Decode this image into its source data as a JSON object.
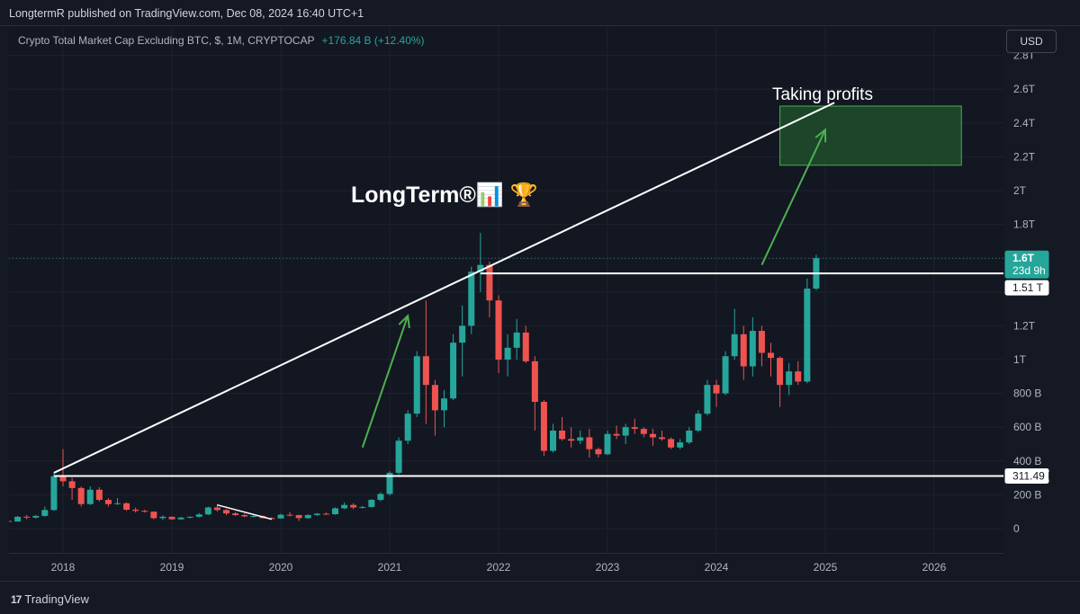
{
  "header": {
    "publisher": "LongtermR published on TradingView.com, Dec 08, 2024 16:40 UTC+1",
    "symbol": "Crypto Total Market Cap Excluding BTC, $, 1M, CRYPTOCAP",
    "change": "+176.84 B (+12.40%)",
    "currency_button": "USD"
  },
  "footer": {
    "brand": "TradingView",
    "logo_text": "17"
  },
  "annotations": {
    "watermark": "LongTerm®📊 🏆",
    "taking_profits": "Taking profits"
  },
  "price_labels": {
    "last_price": "1.6T",
    "countdown": "23d 9h",
    "level_upper": "1.51 T",
    "level_lower": "311.49 B"
  },
  "colors": {
    "background": "#131722",
    "bull": "#26a69a",
    "bear": "#ef5350",
    "arrow": "#4caf50",
    "zone": "#1f4d2c",
    "lines": "#ffffff"
  },
  "chart_data": {
    "type": "candlestick",
    "interval": "1M",
    "y_unit": "billion USD",
    "y_ticks": [
      {
        "value": 0,
        "label": "0"
      },
      {
        "value": 200,
        "label": "200 B"
      },
      {
        "value": 400,
        "label": "400 B"
      },
      {
        "value": 600,
        "label": "600 B"
      },
      {
        "value": 800,
        "label": "800 B"
      },
      {
        "value": 1000,
        "label": "1T"
      },
      {
        "value": 1200,
        "label": "1.2T"
      },
      {
        "value": 1400,
        "label": ""
      },
      {
        "value": 1600,
        "label": ""
      },
      {
        "value": 1800,
        "label": "1.8T"
      },
      {
        "value": 2000,
        "label": "2T"
      },
      {
        "value": 2200,
        "label": "2.2T"
      },
      {
        "value": 2400,
        "label": "2.4T"
      },
      {
        "value": 2600,
        "label": "2.6T"
      },
      {
        "value": 2800,
        "label": "2.8T"
      }
    ],
    "x_ticks": [
      {
        "date": "2018-01",
        "label": "2018"
      },
      {
        "date": "2019-01",
        "label": "2019"
      },
      {
        "date": "2020-01",
        "label": "2020"
      },
      {
        "date": "2021-01",
        "label": "2021"
      },
      {
        "date": "2022-01",
        "label": "2022"
      },
      {
        "date": "2023-01",
        "label": "2023"
      },
      {
        "date": "2024-01",
        "label": "2024"
      },
      {
        "date": "2025-01",
        "label": "2025"
      },
      {
        "date": "2026-01",
        "label": "2026"
      }
    ],
    "ohlc": [
      [
        "2017-06",
        40,
        55,
        30,
        45
      ],
      [
        "2017-07",
        45,
        52,
        35,
        42
      ],
      [
        "2017-08",
        42,
        75,
        40,
        70
      ],
      [
        "2017-09",
        70,
        80,
        55,
        65
      ],
      [
        "2017-10",
        65,
        80,
        60,
        75
      ],
      [
        "2017-11",
        75,
        130,
        70,
        110
      ],
      [
        "2017-12",
        110,
        330,
        105,
        310
      ],
      [
        "2018-01",
        310,
        470,
        250,
        280
      ],
      [
        "2018-02",
        280,
        300,
        170,
        240
      ],
      [
        "2018-03",
        240,
        250,
        130,
        145
      ],
      [
        "2018-04",
        145,
        250,
        140,
        230
      ],
      [
        "2018-05",
        230,
        245,
        160,
        170
      ],
      [
        "2018-06",
        170,
        180,
        130,
        145
      ],
      [
        "2018-07",
        145,
        180,
        140,
        150
      ],
      [
        "2018-08",
        150,
        155,
        105,
        112
      ],
      [
        "2018-09",
        112,
        125,
        95,
        105
      ],
      [
        "2018-10",
        105,
        112,
        95,
        100
      ],
      [
        "2018-11",
        100,
        102,
        55,
        62
      ],
      [
        "2018-12",
        62,
        78,
        50,
        70
      ],
      [
        "2019-01",
        70,
        72,
        52,
        55
      ],
      [
        "2019-02",
        55,
        70,
        52,
        65
      ],
      [
        "2019-03",
        65,
        72,
        60,
        70
      ],
      [
        "2019-04",
        70,
        92,
        66,
        84
      ],
      [
        "2019-05",
        84,
        130,
        80,
        125
      ],
      [
        "2019-06",
        125,
        145,
        100,
        110
      ],
      [
        "2019-07",
        110,
        115,
        80,
        90
      ],
      [
        "2019-08",
        90,
        98,
        75,
        80
      ],
      [
        "2019-09",
        80,
        88,
        68,
        72
      ],
      [
        "2019-10",
        72,
        80,
        66,
        74
      ],
      [
        "2019-11",
        74,
        78,
        60,
        62
      ],
      [
        "2019-12",
        62,
        68,
        55,
        60
      ],
      [
        "2020-01",
        60,
        88,
        58,
        82
      ],
      [
        "2020-02",
        82,
        98,
        72,
        80
      ],
      [
        "2020-03",
        80,
        82,
        45,
        62
      ],
      [
        "2020-04",
        62,
        85,
        58,
        80
      ],
      [
        "2020-05",
        80,
        92,
        75,
        88
      ],
      [
        "2020-06",
        88,
        95,
        80,
        85
      ],
      [
        "2020-07",
        85,
        125,
        82,
        120
      ],
      [
        "2020-08",
        120,
        155,
        115,
        140
      ],
      [
        "2020-09",
        140,
        150,
        115,
        125
      ],
      [
        "2020-10",
        125,
        135,
        118,
        128
      ],
      [
        "2020-11",
        128,
        175,
        125,
        170
      ],
      [
        "2020-12",
        170,
        215,
        160,
        205
      ],
      [
        "2021-01",
        205,
        340,
        195,
        330
      ],
      [
        "2021-02",
        330,
        540,
        320,
        520
      ],
      [
        "2021-03",
        520,
        700,
        500,
        680
      ],
      [
        "2021-04",
        680,
        1050,
        660,
        1020
      ],
      [
        "2021-05",
        1020,
        1350,
        620,
        850
      ],
      [
        "2021-06",
        850,
        880,
        550,
        700
      ],
      [
        "2021-07",
        700,
        820,
        600,
        770
      ],
      [
        "2021-08",
        770,
        1150,
        760,
        1100
      ],
      [
        "2021-09",
        1100,
        1320,
        900,
        1200
      ],
      [
        "2021-10",
        1200,
        1550,
        1150,
        1520
      ],
      [
        "2021-11",
        1520,
        1750,
        1400,
        1560
      ],
      [
        "2021-12",
        1560,
        1580,
        1250,
        1350
      ],
      [
        "2022-01",
        1350,
        1380,
        920,
        1000
      ],
      [
        "2022-02",
        1000,
        1150,
        900,
        1070
      ],
      [
        "2022-03",
        1070,
        1240,
        1000,
        1160
      ],
      [
        "2022-04",
        1160,
        1200,
        980,
        990
      ],
      [
        "2022-05",
        990,
        1020,
        580,
        750
      ],
      [
        "2022-06",
        750,
        760,
        430,
        460
      ],
      [
        "2022-07",
        460,
        620,
        450,
        580
      ],
      [
        "2022-08",
        580,
        660,
        520,
        530
      ],
      [
        "2022-09",
        530,
        600,
        480,
        520
      ],
      [
        "2022-10",
        520,
        580,
        500,
        540
      ],
      [
        "2022-11",
        540,
        590,
        420,
        470
      ],
      [
        "2022-12",
        470,
        480,
        420,
        440
      ],
      [
        "2023-01",
        440,
        580,
        435,
        560
      ],
      [
        "2023-02",
        560,
        610,
        530,
        550
      ],
      [
        "2023-03",
        550,
        620,
        500,
        600
      ],
      [
        "2023-04",
        600,
        650,
        560,
        590
      ],
      [
        "2023-05",
        590,
        600,
        540,
        560
      ],
      [
        "2023-06",
        560,
        590,
        490,
        540
      ],
      [
        "2023-07",
        540,
        580,
        520,
        530
      ],
      [
        "2023-08",
        530,
        540,
        470,
        480
      ],
      [
        "2023-09",
        480,
        530,
        470,
        510
      ],
      [
        "2023-10",
        510,
        600,
        500,
        580
      ],
      [
        "2023-11",
        580,
        700,
        570,
        680
      ],
      [
        "2023-12",
        680,
        880,
        670,
        850
      ],
      [
        "2024-01",
        850,
        880,
        720,
        800
      ],
      [
        "2024-02",
        800,
        1050,
        790,
        1020
      ],
      [
        "2024-03",
        1020,
        1300,
        1000,
        1150
      ],
      [
        "2024-04",
        1150,
        1200,
        880,
        960
      ],
      [
        "2024-05",
        960,
        1250,
        900,
        1170
      ],
      [
        "2024-06",
        1170,
        1200,
        960,
        1040
      ],
      [
        "2024-07",
        1040,
        1100,
        900,
        1010
      ],
      [
        "2024-08",
        1010,
        1020,
        720,
        850
      ],
      [
        "2024-09",
        850,
        980,
        790,
        930
      ],
      [
        "2024-10",
        930,
        990,
        850,
        870
      ],
      [
        "2024-11",
        870,
        1480,
        860,
        1420
      ],
      [
        "2024-12",
        1420,
        1620,
        1410,
        1600
      ]
    ],
    "horizontal_levels": [
      {
        "value": 1510,
        "label": "1.51 T"
      },
      {
        "value": 311.49,
        "label": "311.49 B"
      }
    ],
    "trendline": {
      "from": [
        "2017-12",
        330
      ],
      "to": [
        "2025-02",
        2520
      ]
    },
    "arrows": [
      {
        "from": [
          "2020-10",
          480
        ],
        "to": [
          "2021-03",
          1260
        ]
      },
      {
        "from": [
          "2024-06",
          1560
        ],
        "to": [
          "2025-01",
          2360
        ]
      },
      {
        "from": [
          "2019-06",
          140
        ],
        "to": [
          "2019-12",
          55
        ],
        "style": "diagonal"
      }
    ],
    "target_zone": {
      "from": "2024-08",
      "to": "2026-04",
      "low": 2150,
      "high": 2500,
      "label": "Taking profits"
    }
  }
}
